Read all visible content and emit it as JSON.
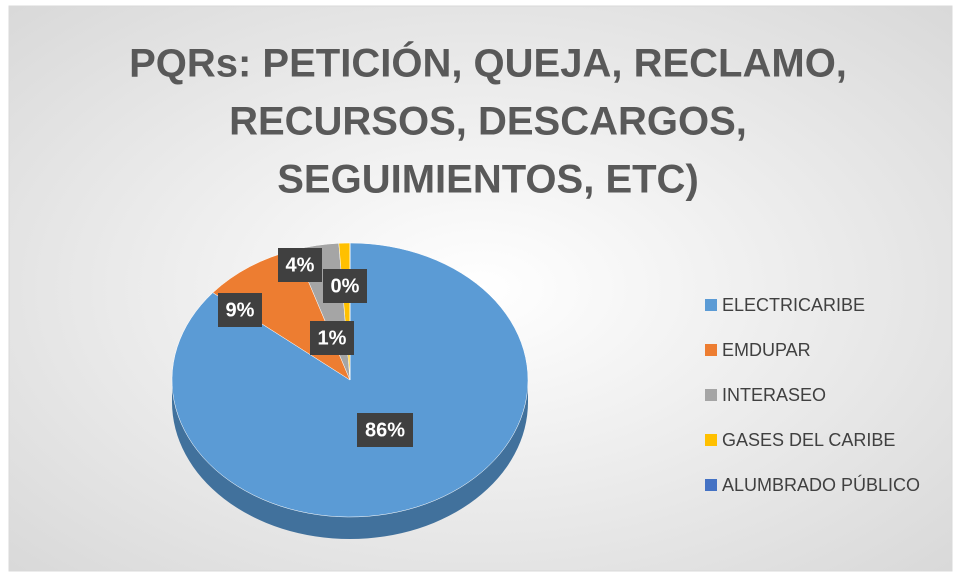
{
  "chart_data": {
    "type": "pie3d",
    "title": [
      "PQRs: PETICIÓN, QUEJA, RECLAMO,",
      "RECURSOS, DESCARGOS,",
      "SEGUIMIENTOS, ETC)"
    ],
    "categories": [
      "ELECTRICARIBE",
      "EMDUPAR",
      "INTERASEO",
      "GASES DEL CARIBE",
      "ALUMBRADO PÚBLICO"
    ],
    "values": [
      86,
      9,
      4,
      1,
      0
    ],
    "value_labels": [
      "86%",
      "9%",
      "4%",
      "1%",
      "0%"
    ],
    "colors": [
      "#5b9bd5",
      "#ed7d31",
      "#a5a5a5",
      "#ffc000",
      "#4472c4"
    ],
    "legend": "right"
  }
}
